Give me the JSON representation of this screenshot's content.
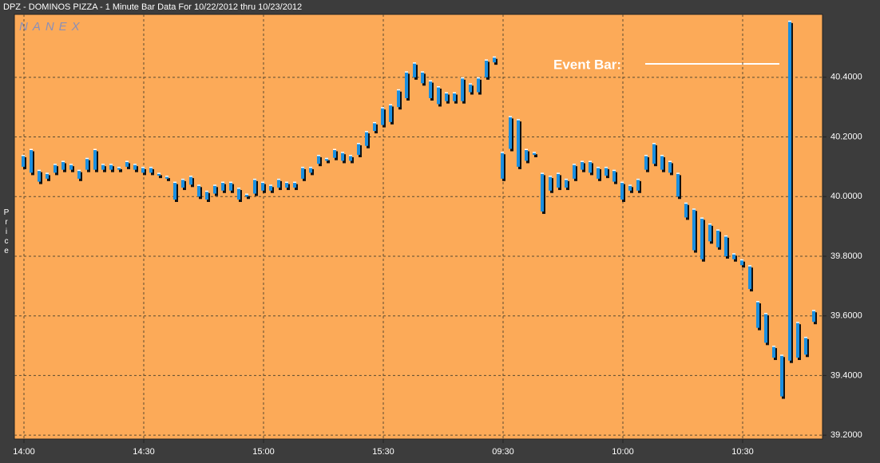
{
  "chart_data": {
    "type": "range-bar",
    "title": "DPZ - DOMINOS PIZZA - 1 Minute Bar Data For 10/22/2012  thru  10/23/2012",
    "watermark": "NANEX",
    "y_label": "Price",
    "annotation": "Event Bar:",
    "color": "#1a8fe0",
    "categories": [
      "14:00",
      null,
      null,
      null,
      null,
      null,
      null,
      null,
      null,
      null,
      null,
      null,
      null,
      null,
      null,
      "14:30",
      null,
      null,
      null,
      null,
      null,
      null,
      null,
      null,
      null,
      null,
      null,
      null,
      null,
      null,
      "15:00",
      null,
      null,
      null,
      null,
      null,
      null,
      null,
      null,
      null,
      null,
      null,
      null,
      null,
      null,
      "15:30",
      null,
      null,
      null,
      null,
      null,
      null,
      null,
      null,
      null,
      null,
      null,
      null,
      null,
      null,
      "09:30",
      null,
      null,
      null,
      null,
      null,
      null,
      null,
      null,
      null,
      null,
      null,
      null,
      null,
      null,
      "10:00",
      null,
      null,
      null,
      null,
      null,
      null,
      null,
      null,
      null,
      null,
      null,
      null,
      null,
      null,
      "10:30",
      null,
      null,
      null,
      null,
      null,
      null,
      null,
      null,
      null
    ],
    "low": [
      40.1,
      40.08,
      40.05,
      40.06,
      40.08,
      40.09,
      40.09,
      40.06,
      40.09,
      40.09,
      40.09,
      40.09,
      40.09,
      40.1,
      40.09,
      40.08,
      40.08,
      40.07,
      40.06,
      39.99,
      40.03,
      40.04,
      40.0,
      39.99,
      40.01,
      40.02,
      40.02,
      39.99,
      40.0,
      40.01,
      40.02,
      40.02,
      40.03,
      40.03,
      40.03,
      40.06,
      40.08,
      40.11,
      40.12,
      40.13,
      40.12,
      40.12,
      40.14,
      40.17,
      40.22,
      40.24,
      40.25,
      40.3,
      40.33,
      40.4,
      40.38,
      40.33,
      40.31,
      40.32,
      40.32,
      40.32,
      40.35,
      40.35,
      40.4,
      40.45,
      40.06,
      40.16,
      40.1,
      40.12,
      40.14,
      39.95,
      40.02,
      40.03,
      40.03,
      40.06,
      40.09,
      40.08,
      40.06,
      40.07,
      40.05,
      39.99,
      40.02,
      40.02,
      40.09,
      40.11,
      40.09,
      40.08,
      40.0,
      39.93,
      39.82,
      39.79,
      39.85,
      39.83,
      39.8,
      39.79,
      39.77,
      39.69,
      39.56,
      39.51,
      39.46,
      39.33,
      39.45,
      39.46,
      39.47,
      39.58
    ],
    "high": [
      40.14,
      40.16,
      40.09,
      40.08,
      40.11,
      40.12,
      40.11,
      40.09,
      40.13,
      40.16,
      40.11,
      40.11,
      40.1,
      40.12,
      40.11,
      40.1,
      40.1,
      40.08,
      40.07,
      40.05,
      40.06,
      40.07,
      40.04,
      40.02,
      40.04,
      40.05,
      40.05,
      40.03,
      40.01,
      40.06,
      40.05,
      40.04,
      40.06,
      40.05,
      40.05,
      40.1,
      40.1,
      40.14,
      40.13,
      40.16,
      40.15,
      40.14,
      40.18,
      40.22,
      40.25,
      40.3,
      40.31,
      40.36,
      40.42,
      40.45,
      40.42,
      40.39,
      40.37,
      40.35,
      40.35,
      40.4,
      40.38,
      40.4,
      40.46,
      40.47,
      40.15,
      40.27,
      40.26,
      40.16,
      40.15,
      40.08,
      40.07,
      40.08,
      40.06,
      40.11,
      40.12,
      40.12,
      40.1,
      40.1,
      40.09,
      40.05,
      40.04,
      40.06,
      40.14,
      40.18,
      40.14,
      40.12,
      40.08,
      39.98,
      39.96,
      39.93,
      39.91,
      39.89,
      39.87,
      39.81,
      39.79,
      39.77,
      39.65,
      39.61,
      39.5,
      39.47,
      40.59,
      39.58,
      39.53,
      39.62
    ],
    "ylim": [
      39.187,
      40.611
    ],
    "yticks": [
      {
        "value": 39.2,
        "label": "39.2000"
      },
      {
        "value": 39.4,
        "label": "39.4000"
      },
      {
        "value": 39.6,
        "label": "39.6000"
      },
      {
        "value": 39.8,
        "label": "39.8000"
      },
      {
        "value": 40.0,
        "label": "40.0000"
      },
      {
        "value": 40.2,
        "label": "40.2000"
      },
      {
        "value": 40.4,
        "label": "40.4000"
      }
    ],
    "grid": true
  }
}
